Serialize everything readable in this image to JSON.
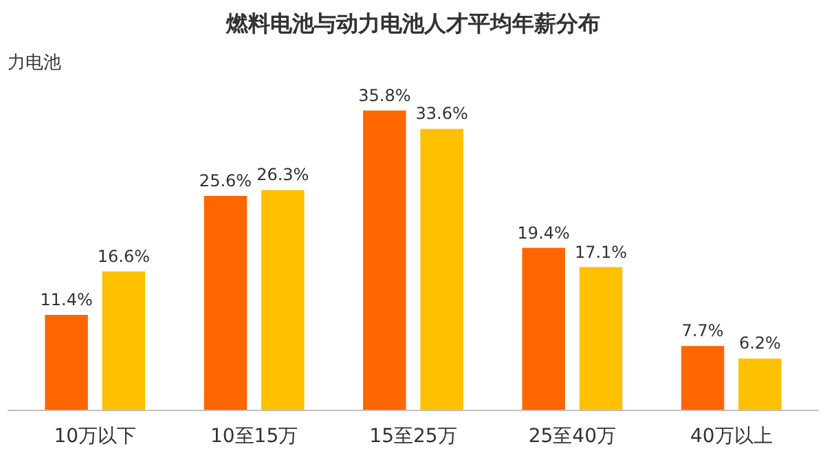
{
  "chart_data": {
    "type": "bar",
    "title": "燃料电池与动力电池人才平均年薪分布",
    "categories": [
      "10万以下",
      "10至15万",
      "15至25万",
      "25至40万",
      "40万以上"
    ],
    "series": [
      {
        "color": "#ff6600",
        "values": [
          11.4,
          25.6,
          35.8,
          19.4,
          7.7
        ],
        "value_labels": [
          "11.4%",
          "25.6%",
          "35.8%",
          "19.4%",
          "7.7%"
        ]
      },
      {
        "color": "#ffc000",
        "values": [
          16.6,
          26.3,
          33.6,
          17.1,
          6.2
        ],
        "value_labels": [
          "16.6%",
          "26.3%",
          "33.6%",
          "17.1%",
          "6.2%"
        ]
      }
    ],
    "grid": false,
    "tick_labels": "x",
    "annotations": [
      "力电池"
    ]
  }
}
